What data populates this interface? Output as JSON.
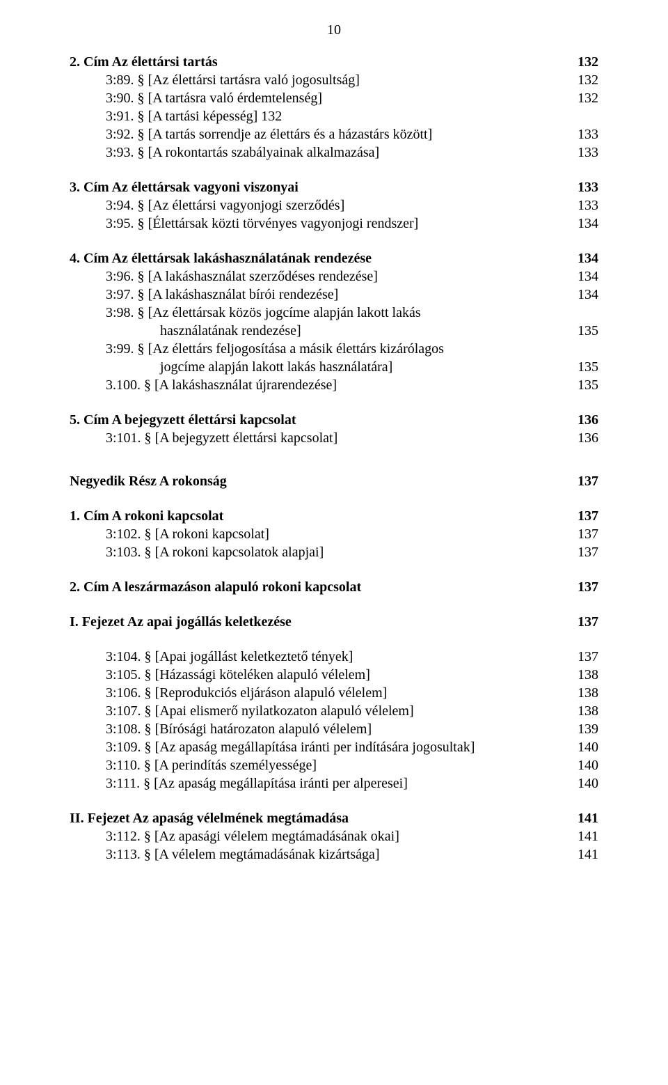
{
  "pageNumber": "10",
  "lines": [
    {
      "cls": "row bold",
      "label_cls": "",
      "label": "2. Cím Az élettársi tartás",
      "num": "132"
    },
    {
      "cls": "row",
      "label_cls": "hang",
      "label": "3:89. § [Az élettársi tartásra való jogosultság]",
      "num": "132"
    },
    {
      "cls": "row",
      "label_cls": "hang",
      "label": "3:90. § [A tartásra való érdemtelenség]",
      "num": "132"
    },
    {
      "cls": "row",
      "label_cls": "hang",
      "label": "3:91. § [A tartási képesség] 132",
      "num": ""
    },
    {
      "cls": "row",
      "label_cls": "hang",
      "label": "3:92. § [A tartás sorrendje az élettárs és a házastárs között]",
      "num": "133"
    },
    {
      "cls": "row",
      "label_cls": "hang",
      "label": "3:93. § [A rokontartás szabályainak alkalmazása]",
      "num": "133"
    },
    {
      "cls": "row bold section-gap",
      "label_cls": "",
      "label": "3. Cím Az élettársak vagyoni viszonyai",
      "num": "133"
    },
    {
      "cls": "row",
      "label_cls": "hang",
      "label": "3:94. § [Az élettársi vagyonjogi szerződés]",
      "num": "133"
    },
    {
      "cls": "row",
      "label_cls": "hang",
      "label": "3:95. § [Élettársak közti törvényes vagyonjogi rendszer]",
      "num": "134"
    },
    {
      "cls": "row bold section-gap",
      "label_cls": "",
      "label": "4. Cím Az élettársak lakáshasználatának rendezése",
      "num": "134"
    },
    {
      "cls": "row",
      "label_cls": "hang",
      "label": "3:96. § [A lakáshasználat szerződéses rendezése]",
      "num": "134"
    },
    {
      "cls": "row",
      "label_cls": "hang",
      "label": "3:97. § [A lakáshasználat bírói rendezése]",
      "num": "134"
    },
    {
      "cls": "row",
      "label_cls": "hang",
      "label": "3:98. § [Az élettársak közös jogcíme alapján lakott lakás",
      "num": ""
    },
    {
      "cls": "row",
      "label_cls": "cont",
      "label": "használatának rendezése]",
      "num": "135"
    },
    {
      "cls": "row",
      "label_cls": "hang",
      "label": "3:99. § [Az élettárs feljogosítása a másik élettárs kizárólagos",
      "num": ""
    },
    {
      "cls": "row",
      "label_cls": "cont",
      "label": "jogcíme alapján lakott lakás használatára]",
      "num": "135"
    },
    {
      "cls": "row",
      "label_cls": "hang-wide",
      "label": "3.100. § [A lakáshasználat újrarendezése]",
      "num": "135"
    },
    {
      "cls": "row bold section-gap",
      "label_cls": "",
      "label": "5. Cím A bejegyzett élettársi kapcsolat",
      "num": "136"
    },
    {
      "cls": "row",
      "label_cls": "hang-wide",
      "label": "3:101. § [A bejegyzett élettársi kapcsolat]",
      "num": "136"
    },
    {
      "cls": "row bold big-gap",
      "label_cls": "",
      "label": "Negyedik Rész A rokonság",
      "num": "137"
    },
    {
      "cls": "row bold section-gap",
      "label_cls": "",
      "label": "1. Cím A rokoni kapcsolat",
      "num": "137"
    },
    {
      "cls": "row",
      "label_cls": "hang-wide",
      "label": "3:102. § [A rokoni kapcsolat]",
      "num": "137"
    },
    {
      "cls": "row",
      "label_cls": "hang-wide",
      "label": "3:103. § [A rokoni kapcsolatok alapjai]",
      "num": "137"
    },
    {
      "cls": "row bold section-gap",
      "label_cls": "",
      "label": "2. Cím A leszármazáson alapuló rokoni kapcsolat",
      "num": "137"
    },
    {
      "cls": "row bold section-gap",
      "label_cls": "",
      "label": "I. Fejezet Az apai jogállás keletkezése",
      "num": "137"
    },
    {
      "cls": "row section-gap",
      "label_cls": "hang-wide",
      "label": "3:104. § [Apai jogállást keletkeztető tények]",
      "num": "137"
    },
    {
      "cls": "row",
      "label_cls": "hang-wide",
      "label": "3:105. § [Házassági köteléken alapuló vélelem]",
      "num": "138"
    },
    {
      "cls": "row",
      "label_cls": "hang-wide",
      "label": "3:106. § [Reprodukciós eljáráson alapuló vélelem]",
      "num": "138"
    },
    {
      "cls": "row",
      "label_cls": "hang-wide",
      "label": "3:107. § [Apai elismerő nyilatkozaton alapuló vélelem]",
      "num": "138"
    },
    {
      "cls": "row",
      "label_cls": "hang-wide",
      "label": "3:108. § [Bírósági határozaton alapuló vélelem]",
      "num": "139"
    },
    {
      "cls": "row",
      "label_cls": "hang-wide",
      "label": "3:109. § [Az apaság megállapítása iránti per indítására jogosultak]",
      "num": "140"
    },
    {
      "cls": "row",
      "label_cls": "hang-wide",
      "label": "3:110. § [A perindítás személyessége]",
      "num": "140"
    },
    {
      "cls": "row",
      "label_cls": "hang-wide",
      "label": "3:111. § [Az apaság megállapítása iránti per alperesei]",
      "num": "140"
    },
    {
      "cls": "row bold section-gap",
      "label_cls": "",
      "label": "II. Fejezet Az apaság vélelmének megtámadása",
      "num": "141"
    },
    {
      "cls": "row",
      "label_cls": "hang-wide",
      "label": "3:112. § [Az apasági vélelem megtámadásának okai]",
      "num": "141"
    },
    {
      "cls": "row",
      "label_cls": "hang-wide",
      "label": "3:113. § [A vélelem megtámadásának kizártsága]",
      "num": "141"
    }
  ]
}
